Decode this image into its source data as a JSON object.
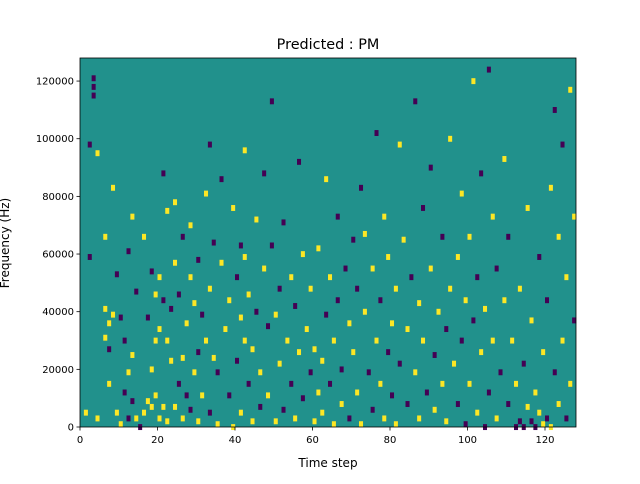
{
  "chart_data": {
    "type": "heatmap",
    "title": "Predicted : PM",
    "xlabel": "Time step",
    "ylabel": "Frequency (Hz)",
    "xlim": [
      0,
      128
    ],
    "ylim": [
      0,
      128000
    ],
    "grid_size": [
      128,
      128
    ],
    "x_ticks": [
      {
        "value": 0,
        "label": "0"
      },
      {
        "value": 20,
        "label": "20"
      },
      {
        "value": 40,
        "label": "40"
      },
      {
        "value": 60,
        "label": "60"
      },
      {
        "value": 80,
        "label": "80"
      },
      {
        "value": 100,
        "label": "100"
      },
      {
        "value": 120,
        "label": "120"
      }
    ],
    "y_ticks": [
      {
        "value": 0,
        "label": "0"
      },
      {
        "value": 20000,
        "label": "20000"
      },
      {
        "value": 40000,
        "label": "40000"
      },
      {
        "value": 60000,
        "label": "60000"
      },
      {
        "value": 80000,
        "label": "80000"
      },
      {
        "value": 100000,
        "label": "100000"
      },
      {
        "value": 120000,
        "label": "120000"
      }
    ],
    "colormap": "viridis",
    "colors": {
      "background": "#21918c",
      "low": "#440154",
      "high": "#fde725"
    },
    "cell_value_range": [
      -1,
      1
    ],
    "background_value": 0,
    "cells": [
      {
        "x": 1,
        "y": 5,
        "v": 1
      },
      {
        "x": 2,
        "y": 59,
        "v": -1
      },
      {
        "x": 2,
        "y": 98,
        "v": -1
      },
      {
        "x": 3,
        "y": 115,
        "v": -1
      },
      {
        "x": 3,
        "y": 118,
        "v": -1
      },
      {
        "x": 3,
        "y": 121,
        "v": -1
      },
      {
        "x": 4,
        "y": 3,
        "v": 1
      },
      {
        "x": 4,
        "y": 95,
        "v": 1
      },
      {
        "x": 6,
        "y": 31,
        "v": 1
      },
      {
        "x": 6,
        "y": 41,
        "v": 1
      },
      {
        "x": 6,
        "y": 66,
        "v": 1
      },
      {
        "x": 7,
        "y": 15,
        "v": 1
      },
      {
        "x": 7,
        "y": 27,
        "v": -1
      },
      {
        "x": 7,
        "y": 36,
        "v": 1
      },
      {
        "x": 8,
        "y": 39,
        "v": 1
      },
      {
        "x": 8,
        "y": 83,
        "v": 1
      },
      {
        "x": 9,
        "y": 5,
        "v": 1
      },
      {
        "x": 9,
        "y": 53,
        "v": -1
      },
      {
        "x": 10,
        "y": 1,
        "v": 1
      },
      {
        "x": 10,
        "y": 38,
        "v": -1
      },
      {
        "x": 11,
        "y": 12,
        "v": -1
      },
      {
        "x": 11,
        "y": 30,
        "v": -1
      },
      {
        "x": 12,
        "y": 3,
        "v": -1
      },
      {
        "x": 12,
        "y": 19,
        "v": 1
      },
      {
        "x": 12,
        "y": 61,
        "v": -1
      },
      {
        "x": 13,
        "y": 9,
        "v": -1
      },
      {
        "x": 13,
        "y": 25,
        "v": 1
      },
      {
        "x": 13,
        "y": 73,
        "v": 1
      },
      {
        "x": 14,
        "y": 3,
        "v": 1
      },
      {
        "x": 14,
        "y": 47,
        "v": -1
      },
      {
        "x": 15,
        "y": 0,
        "v": -1
      },
      {
        "x": 16,
        "y": 5,
        "v": 1
      },
      {
        "x": 16,
        "y": 66,
        "v": 1
      },
      {
        "x": 17,
        "y": 9,
        "v": 1
      },
      {
        "x": 17,
        "y": 38,
        "v": -1
      },
      {
        "x": 18,
        "y": 7,
        "v": 1
      },
      {
        "x": 18,
        "y": 20,
        "v": 1
      },
      {
        "x": 18,
        "y": 54,
        "v": -1
      },
      {
        "x": 19,
        "y": 11,
        "v": 1
      },
      {
        "x": 19,
        "y": 30,
        "v": 1
      },
      {
        "x": 19,
        "y": 46,
        "v": 1
      },
      {
        "x": 20,
        "y": 3,
        "v": 1
      },
      {
        "x": 20,
        "y": 34,
        "v": 1
      },
      {
        "x": 20,
        "y": 52,
        "v": 1
      },
      {
        "x": 21,
        "y": 7,
        "v": 1
      },
      {
        "x": 21,
        "y": 44,
        "v": -1
      },
      {
        "x": 21,
        "y": 88,
        "v": -1
      },
      {
        "x": 22,
        "y": 2,
        "v": 1
      },
      {
        "x": 22,
        "y": 30,
        "v": 1
      },
      {
        "x": 22,
        "y": 75,
        "v": 1
      },
      {
        "x": 23,
        "y": 23,
        "v": 1
      },
      {
        "x": 23,
        "y": 41,
        "v": -1
      },
      {
        "x": 24,
        "y": 7,
        "v": 1
      },
      {
        "x": 24,
        "y": 57,
        "v": 1
      },
      {
        "x": 24,
        "y": 78,
        "v": 1
      },
      {
        "x": 25,
        "y": 15,
        "v": -1
      },
      {
        "x": 25,
        "y": 46,
        "v": -1
      },
      {
        "x": 26,
        "y": 3,
        "v": 1
      },
      {
        "x": 26,
        "y": 24,
        "v": 1
      },
      {
        "x": 26,
        "y": 66,
        "v": -1
      },
      {
        "x": 27,
        "y": 11,
        "v": -1
      },
      {
        "x": 27,
        "y": 36,
        "v": 1
      },
      {
        "x": 28,
        "y": 6,
        "v": -1
      },
      {
        "x": 28,
        "y": 52,
        "v": 1
      },
      {
        "x": 28,
        "y": 70,
        "v": 1
      },
      {
        "x": 29,
        "y": 19,
        "v": 1
      },
      {
        "x": 29,
        "y": 43,
        "v": 1
      },
      {
        "x": 30,
        "y": 2,
        "v": 1
      },
      {
        "x": 30,
        "y": 26,
        "v": -1
      },
      {
        "x": 30,
        "y": 58,
        "v": -1
      },
      {
        "x": 31,
        "y": 11,
        "v": 1
      },
      {
        "x": 31,
        "y": 39,
        "v": -1
      },
      {
        "x": 32,
        "y": 30,
        "v": 1
      },
      {
        "x": 32,
        "y": 81,
        "v": 1
      },
      {
        "x": 33,
        "y": 5,
        "v": -1
      },
      {
        "x": 33,
        "y": 48,
        "v": 1
      },
      {
        "x": 33,
        "y": 98,
        "v": -1
      },
      {
        "x": 34,
        "y": 24,
        "v": 1
      },
      {
        "x": 34,
        "y": 64,
        "v": -1
      },
      {
        "x": 35,
        "y": 1,
        "v": 1
      },
      {
        "x": 35,
        "y": 19,
        "v": -1
      },
      {
        "x": 36,
        "y": 57,
        "v": 1
      },
      {
        "x": 36,
        "y": 86,
        "v": -1
      },
      {
        "x": 37,
        "y": 34,
        "v": 1
      },
      {
        "x": 38,
        "y": 11,
        "v": -1
      },
      {
        "x": 38,
        "y": 44,
        "v": 1
      },
      {
        "x": 39,
        "y": 0,
        "v": 1
      },
      {
        "x": 39,
        "y": 76,
        "v": 1
      },
      {
        "x": 40,
        "y": 23,
        "v": -1
      },
      {
        "x": 40,
        "y": 52,
        "v": -1
      },
      {
        "x": 41,
        "y": 5,
        "v": 1
      },
      {
        "x": 41,
        "y": 38,
        "v": 1
      },
      {
        "x": 41,
        "y": 63,
        "v": -1
      },
      {
        "x": 42,
        "y": 30,
        "v": 1
      },
      {
        "x": 42,
        "y": 59,
        "v": 1
      },
      {
        "x": 42,
        "y": 96,
        "v": 1
      },
      {
        "x": 43,
        "y": 15,
        "v": -1
      },
      {
        "x": 43,
        "y": 46,
        "v": 1
      },
      {
        "x": 44,
        "y": 2,
        "v": 1
      },
      {
        "x": 44,
        "y": 27,
        "v": 1
      },
      {
        "x": 45,
        "y": 40,
        "v": -1
      },
      {
        "x": 45,
        "y": 72,
        "v": 1
      },
      {
        "x": 46,
        "y": 7,
        "v": -1
      },
      {
        "x": 46,
        "y": 19,
        "v": 1
      },
      {
        "x": 47,
        "y": 55,
        "v": 1
      },
      {
        "x": 47,
        "y": 88,
        "v": -1
      },
      {
        "x": 48,
        "y": 11,
        "v": 1
      },
      {
        "x": 48,
        "y": 35,
        "v": -1
      },
      {
        "x": 49,
        "y": 63,
        "v": -1
      },
      {
        "x": 49,
        "y": 113,
        "v": -1
      },
      {
        "x": 50,
        "y": 2,
        "v": 1
      },
      {
        "x": 50,
        "y": 39,
        "v": 1
      },
      {
        "x": 51,
        "y": 22,
        "v": 1
      },
      {
        "x": 51,
        "y": 48,
        "v": -1
      },
      {
        "x": 52,
        "y": 6,
        "v": -1
      },
      {
        "x": 52,
        "y": 71,
        "v": -1
      },
      {
        "x": 53,
        "y": 30,
        "v": 1
      },
      {
        "x": 54,
        "y": 15,
        "v": -1
      },
      {
        "x": 54,
        "y": 52,
        "v": 1
      },
      {
        "x": 55,
        "y": 3,
        "v": 1
      },
      {
        "x": 55,
        "y": 42,
        "v": -1
      },
      {
        "x": 56,
        "y": 26,
        "v": 1
      },
      {
        "x": 56,
        "y": 92,
        "v": -1
      },
      {
        "x": 57,
        "y": 10,
        "v": -1
      },
      {
        "x": 57,
        "y": 60,
        "v": 1
      },
      {
        "x": 58,
        "y": 34,
        "v": 1
      },
      {
        "x": 59,
        "y": 19,
        "v": -1
      },
      {
        "x": 59,
        "y": 48,
        "v": 1
      },
      {
        "x": 60,
        "y": 2,
        "v": 1
      },
      {
        "x": 60,
        "y": 27,
        "v": 1
      },
      {
        "x": 61,
        "y": 12,
        "v": 1
      },
      {
        "x": 61,
        "y": 62,
        "v": 1
      },
      {
        "x": 62,
        "y": 5,
        "v": 1
      },
      {
        "x": 62,
        "y": 23,
        "v": 1
      },
      {
        "x": 63,
        "y": 39,
        "v": -1
      },
      {
        "x": 63,
        "y": 86,
        "v": 1
      },
      {
        "x": 64,
        "y": 15,
        "v": -1
      },
      {
        "x": 64,
        "y": 52,
        "v": 1
      },
      {
        "x": 65,
        "y": 1,
        "v": 1
      },
      {
        "x": 65,
        "y": 30,
        "v": 1
      },
      {
        "x": 66,
        "y": 44,
        "v": -1
      },
      {
        "x": 66,
        "y": 73,
        "v": -1
      },
      {
        "x": 67,
        "y": 8,
        "v": 1
      },
      {
        "x": 67,
        "y": 20,
        "v": -1
      },
      {
        "x": 68,
        "y": 55,
        "v": -1
      },
      {
        "x": 69,
        "y": 3,
        "v": -1
      },
      {
        "x": 69,
        "y": 36,
        "v": 1
      },
      {
        "x": 70,
        "y": 26,
        "v": 1
      },
      {
        "x": 70,
        "y": 65,
        "v": -1
      },
      {
        "x": 71,
        "y": 12,
        "v": 1
      },
      {
        "x": 71,
        "y": 48,
        "v": -1
      },
      {
        "x": 72,
        "y": 1,
        "v": 1
      },
      {
        "x": 72,
        "y": 83,
        "v": -1
      },
      {
        "x": 73,
        "y": 40,
        "v": 1
      },
      {
        "x": 73,
        "y": 67,
        "v": 1
      },
      {
        "x": 74,
        "y": 19,
        "v": -1
      },
      {
        "x": 75,
        "y": 6,
        "v": -1
      },
      {
        "x": 75,
        "y": 55,
        "v": 1
      },
      {
        "x": 76,
        "y": 30,
        "v": 1
      },
      {
        "x": 76,
        "y": 102,
        "v": -1
      },
      {
        "x": 77,
        "y": 15,
        "v": 1
      },
      {
        "x": 77,
        "y": 44,
        "v": -1
      },
      {
        "x": 78,
        "y": 3,
        "v": 1
      },
      {
        "x": 78,
        "y": 73,
        "v": 1
      },
      {
        "x": 79,
        "y": 26,
        "v": -1
      },
      {
        "x": 79,
        "y": 59,
        "v": 1
      },
      {
        "x": 80,
        "y": 11,
        "v": -1
      },
      {
        "x": 80,
        "y": 36,
        "v": 1
      },
      {
        "x": 81,
        "y": 1,
        "v": 1
      },
      {
        "x": 81,
        "y": 48,
        "v": 1
      },
      {
        "x": 82,
        "y": 22,
        "v": -1
      },
      {
        "x": 82,
        "y": 98,
        "v": 1
      },
      {
        "x": 83,
        "y": 65,
        "v": 1
      },
      {
        "x": 84,
        "y": 8,
        "v": -1
      },
      {
        "x": 84,
        "y": 34,
        "v": 1
      },
      {
        "x": 85,
        "y": 52,
        "v": -1
      },
      {
        "x": 86,
        "y": 19,
        "v": 1
      },
      {
        "x": 86,
        "y": 113,
        "v": -1
      },
      {
        "x": 87,
        "y": 3,
        "v": 1
      },
      {
        "x": 87,
        "y": 43,
        "v": 1
      },
      {
        "x": 88,
        "y": 30,
        "v": 1
      },
      {
        "x": 88,
        "y": 76,
        "v": -1
      },
      {
        "x": 89,
        "y": 12,
        "v": -1
      },
      {
        "x": 90,
        "y": 55,
        "v": 1
      },
      {
        "x": 90,
        "y": 90,
        "v": -1
      },
      {
        "x": 91,
        "y": 6,
        "v": 1
      },
      {
        "x": 91,
        "y": 25,
        "v": -1
      },
      {
        "x": 92,
        "y": 40,
        "v": 1
      },
      {
        "x": 93,
        "y": 15,
        "v": 1
      },
      {
        "x": 93,
        "y": 66,
        "v": -1
      },
      {
        "x": 94,
        "y": 2,
        "v": 1
      },
      {
        "x": 94,
        "y": 34,
        "v": -1
      },
      {
        "x": 95,
        "y": 48,
        "v": 1
      },
      {
        "x": 95,
        "y": 100,
        "v": 1
      },
      {
        "x": 96,
        "y": 22,
        "v": 1
      },
      {
        "x": 97,
        "y": 8,
        "v": -1
      },
      {
        "x": 97,
        "y": 59,
        "v": 1
      },
      {
        "x": 98,
        "y": 30,
        "v": -1
      },
      {
        "x": 98,
        "y": 81,
        "v": 1
      },
      {
        "x": 99,
        "y": 1,
        "v": -1
      },
      {
        "x": 99,
        "y": 44,
        "v": 1
      },
      {
        "x": 100,
        "y": 15,
        "v": 1
      },
      {
        "x": 100,
        "y": 66,
        "v": 1
      },
      {
        "x": 101,
        "y": 37,
        "v": -1
      },
      {
        "x": 101,
        "y": 120,
        "v": 1
      },
      {
        "x": 102,
        "y": 5,
        "v": 1
      },
      {
        "x": 102,
        "y": 52,
        "v": -1
      },
      {
        "x": 103,
        "y": 26,
        "v": 1
      },
      {
        "x": 103,
        "y": 88,
        "v": -1
      },
      {
        "x": 104,
        "y": 0,
        "v": -1
      },
      {
        "x": 104,
        "y": 41,
        "v": 1
      },
      {
        "x": 105,
        "y": 12,
        "v": -1
      },
      {
        "x": 105,
        "y": 124,
        "v": -1
      },
      {
        "x": 106,
        "y": 30,
        "v": 1
      },
      {
        "x": 106,
        "y": 73,
        "v": 1
      },
      {
        "x": 107,
        "y": 3,
        "v": 1
      },
      {
        "x": 107,
        "y": 55,
        "v": -1
      },
      {
        "x": 108,
        "y": 19,
        "v": -1
      },
      {
        "x": 109,
        "y": 44,
        "v": 1
      },
      {
        "x": 109,
        "y": 93,
        "v": 1
      },
      {
        "x": 110,
        "y": 8,
        "v": -1
      },
      {
        "x": 110,
        "y": 66,
        "v": -1
      },
      {
        "x": 111,
        "y": 30,
        "v": 1
      },
      {
        "x": 112,
        "y": 0,
        "v": -1
      },
      {
        "x": 112,
        "y": 15,
        "v": 1
      },
      {
        "x": 113,
        "y": 2,
        "v": -1
      },
      {
        "x": 113,
        "y": 48,
        "v": 1
      },
      {
        "x": 114,
        "y": 0,
        "v": -1
      },
      {
        "x": 114,
        "y": 22,
        "v": -1
      },
      {
        "x": 115,
        "y": 7,
        "v": 1
      },
      {
        "x": 115,
        "y": 76,
        "v": 1
      },
      {
        "x": 116,
        "y": 2,
        "v": -1
      },
      {
        "x": 116,
        "y": 37,
        "v": 1
      },
      {
        "x": 117,
        "y": 0,
        "v": -1
      },
      {
        "x": 117,
        "y": 12,
        "v": 1
      },
      {
        "x": 118,
        "y": 5,
        "v": 1
      },
      {
        "x": 118,
        "y": 59,
        "v": -1
      },
      {
        "x": 119,
        "y": 1,
        "v": 1
      },
      {
        "x": 119,
        "y": 26,
        "v": 1
      },
      {
        "x": 120,
        "y": 3,
        "v": -1
      },
      {
        "x": 120,
        "y": 44,
        "v": -1
      },
      {
        "x": 121,
        "y": 0,
        "v": 1
      },
      {
        "x": 121,
        "y": 83,
        "v": 1
      },
      {
        "x": 122,
        "y": 19,
        "v": -1
      },
      {
        "x": 122,
        "y": 110,
        "v": -1
      },
      {
        "x": 123,
        "y": 8,
        "v": 1
      },
      {
        "x": 123,
        "y": 66,
        "v": 1
      },
      {
        "x": 124,
        "y": 30,
        "v": 1
      },
      {
        "x": 124,
        "y": 98,
        "v": -1
      },
      {
        "x": 125,
        "y": 3,
        "v": -1
      },
      {
        "x": 125,
        "y": 52,
        "v": 1
      },
      {
        "x": 126,
        "y": 15,
        "v": 1
      },
      {
        "x": 126,
        "y": 117,
        "v": 1
      },
      {
        "x": 127,
        "y": 37,
        "v": -1
      },
      {
        "x": 127,
        "y": 73,
        "v": 1
      }
    ]
  }
}
